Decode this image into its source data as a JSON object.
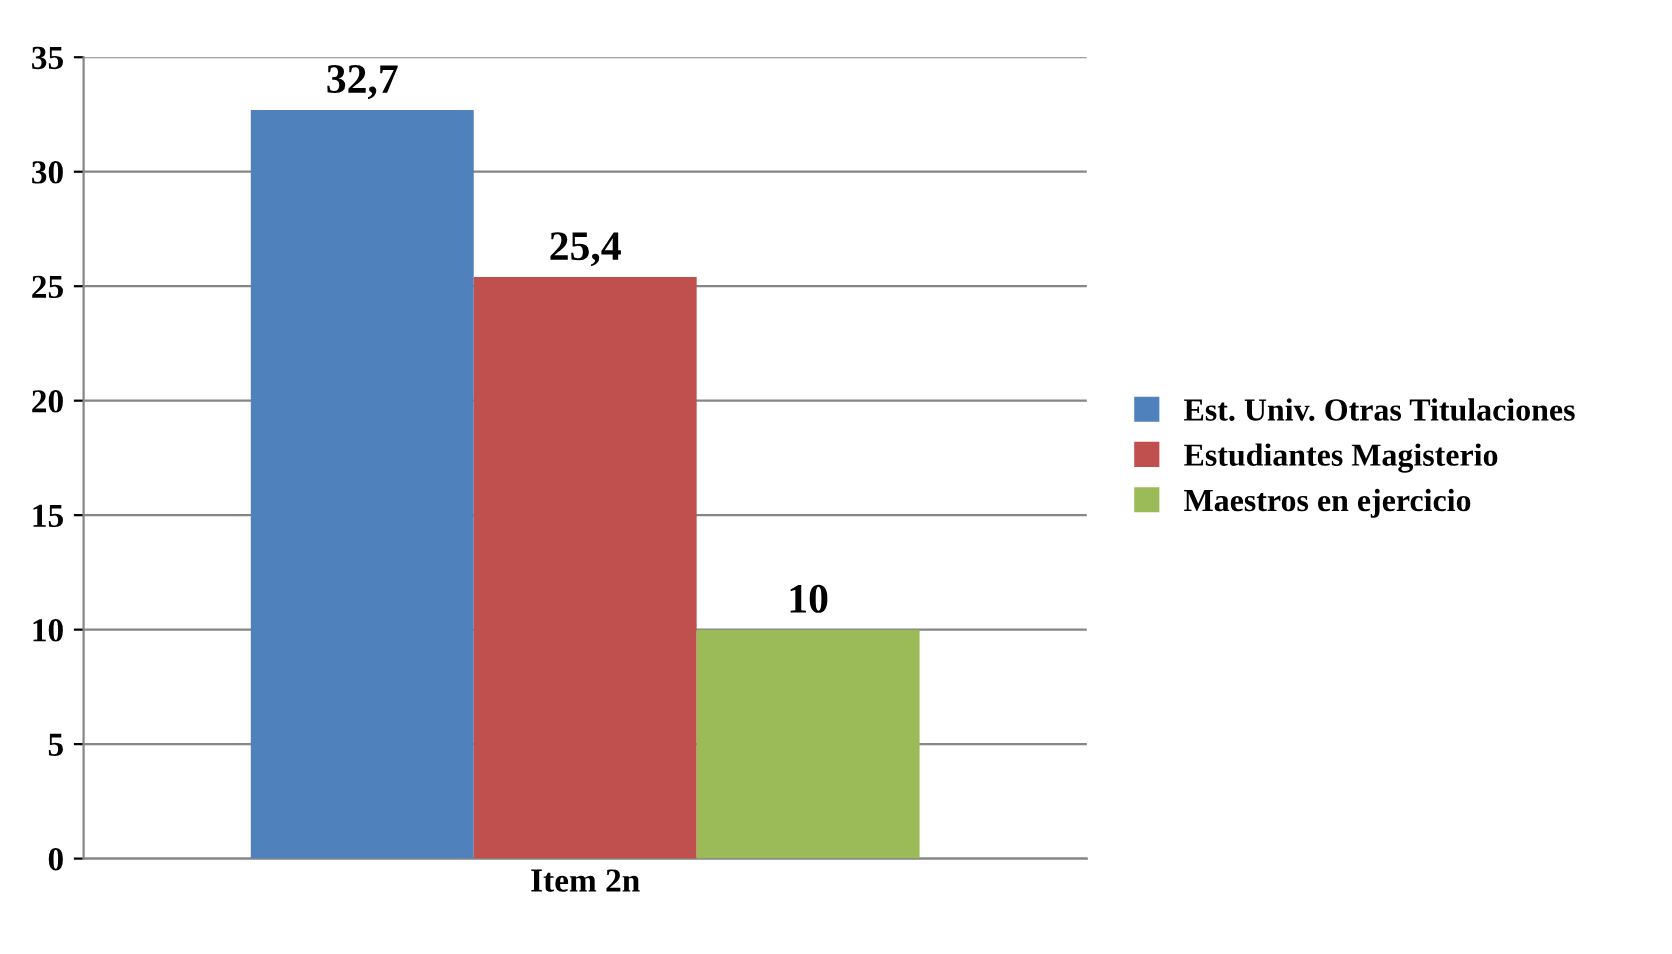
{
  "chart_data": {
    "type": "bar",
    "categories": [
      "Item 2n"
    ],
    "series": [
      {
        "name": "Est. Univ. Otras Titulaciones",
        "color": "#4f81bd",
        "values": [
          32.7
        ],
        "value_labels": [
          "32,7"
        ]
      },
      {
        "name": "Estudiantes Magisterio",
        "color": "#c0504d",
        "values": [
          25.4
        ],
        "value_labels": [
          "25,4"
        ]
      },
      {
        "name": "Maestros en ejercicio",
        "color": "#9bbb59",
        "values": [
          10
        ],
        "value_labels": [
          "10"
        ]
      }
    ],
    "ylim": [
      0,
      35
    ],
    "yticks": [
      0,
      5,
      10,
      15,
      20,
      25,
      30,
      35
    ],
    "grid": "y",
    "legend": "right"
  }
}
